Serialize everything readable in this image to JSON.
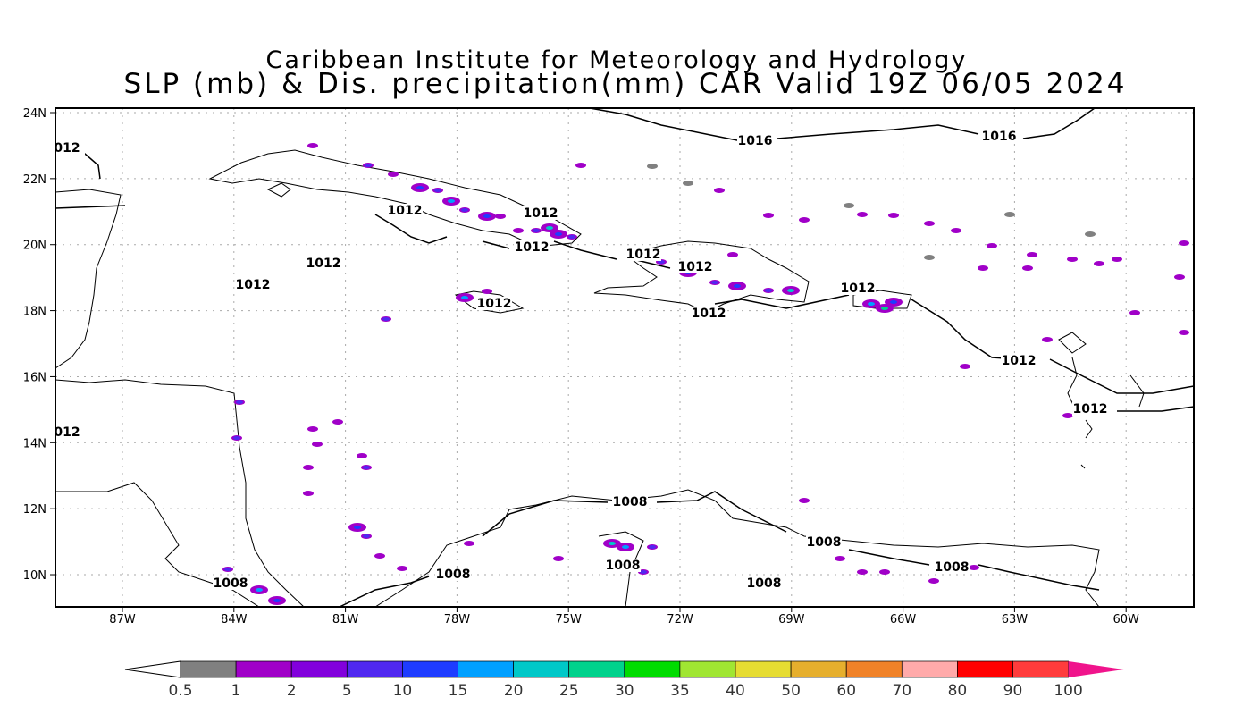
{
  "title": {
    "line1": "Caribbean Institute for Meteorology and Hydrology",
    "line2": "SLP (mb) & Dis. precipitation(mm) CAR Valid 19Z 06/05 2024"
  },
  "axes": {
    "lat_labels": [
      "24N",
      "22N",
      "20N",
      "18N",
      "16N",
      "14N",
      "12N",
      "10N"
    ],
    "lat_values": [
      24,
      22,
      20,
      18,
      16,
      14,
      12,
      10
    ],
    "lon_labels": [
      "87W",
      "84W",
      "81W",
      "78W",
      "75W",
      "72W",
      "69W",
      "66W",
      "63W",
      "60W"
    ],
    "lon_values": [
      87,
      84,
      81,
      78,
      75,
      72,
      69,
      66,
      63,
      60
    ]
  },
  "contour_labels": [
    "1016",
    "1016",
    "012",
    "1012",
    "1012",
    "1012",
    "1012",
    "1012",
    "1012",
    "1012",
    "1012",
    "1012",
    "1012",
    "1012",
    "012",
    "1012",
    "1008",
    "1008",
    "1008",
    "1008",
    "1008",
    "1008",
    "1008"
  ],
  "colorbar": {
    "labels": [
      "0.5",
      "1",
      "2",
      "5",
      "10",
      "15",
      "20",
      "25",
      "30",
      "35",
      "40",
      "50",
      "60",
      "70",
      "80",
      "90",
      "100"
    ],
    "colors": [
      "#808080",
      "#a000c8",
      "#8200dc",
      "#5028f0",
      "#1e3cff",
      "#00a0ff",
      "#00c8c8",
      "#00d28c",
      "#00dc00",
      "#a0e632",
      "#e6dc32",
      "#e6af2d",
      "#f08228",
      "#ffaaaa",
      "#ff0000",
      "#ff3c3c"
    ],
    "low_color": "#ffffff",
    "high_color": "#f0148c"
  }
}
